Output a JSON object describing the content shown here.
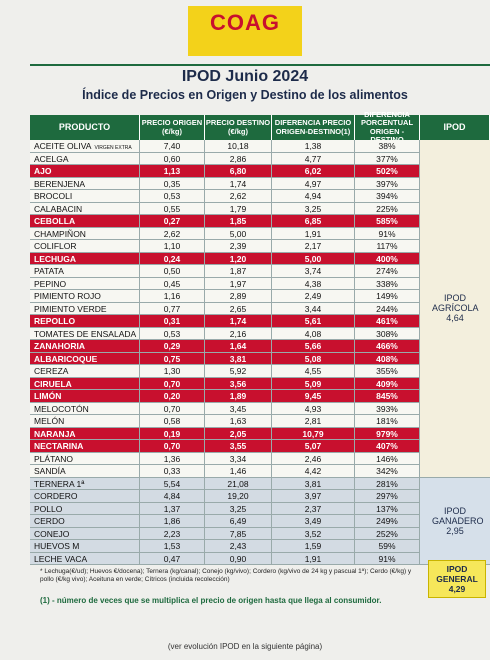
{
  "header": {
    "logo": "COAG",
    "title": "IPOD Junio 2024",
    "subtitle": "Índice de Precios en Origen y Destino de los alimentos"
  },
  "table": {
    "columns": [
      "PRODUCTO",
      "PRECIO ORIGEN (€/kg)",
      "PRECIO DESTINO (€/kg)",
      "DIFERENCIA PRECIO ORIGEN-DESTINO(1)",
      "DIFERENCIA PORCENTUAL ORIGEN - DESTINO",
      "IPOD"
    ],
    "agricola": {
      "label": "IPOD AGRÍCOLA",
      "value": "4,64",
      "rows": [
        {
          "product": "ACEITE OLIVA",
          "note": "VIRGEN EXTRA",
          "origin": "7,40",
          "destination": "10,18",
          "difference": "1,38",
          "percent": "38%"
        },
        {
          "product": "ACELGA",
          "origin": "0,60",
          "destination": "2,86",
          "difference": "4,77",
          "percent": "377%"
        },
        {
          "product": "AJO",
          "origin": "1,13",
          "destination": "6,80",
          "difference": "6,02",
          "percent": "502%",
          "highlight": true
        },
        {
          "product": "BERENJENA",
          "origin": "0,35",
          "destination": "1,74",
          "difference": "4,97",
          "percent": "397%"
        },
        {
          "product": "BROCOLI",
          "origin": "0,53",
          "destination": "2,62",
          "difference": "4,94",
          "percent": "394%"
        },
        {
          "product": "CALABACIN",
          "origin": "0,55",
          "destination": "1,79",
          "difference": "3,25",
          "percent": "225%"
        },
        {
          "product": "CEBOLLA",
          "origin": "0,27",
          "destination": "1,85",
          "difference": "6,85",
          "percent": "585%",
          "highlight": true
        },
        {
          "product": "CHAMPIÑON",
          "origin": "2,62",
          "destination": "5,00",
          "difference": "1,91",
          "percent": "91%"
        },
        {
          "product": "COLIFLOR",
          "origin": "1,10",
          "destination": "2,39",
          "difference": "2,17",
          "percent": "117%"
        },
        {
          "product": "LECHUGA",
          "origin": "0,24",
          "destination": "1,20",
          "difference": "5,00",
          "percent": "400%",
          "highlight": true
        },
        {
          "product": "PATATA",
          "origin": "0,50",
          "destination": "1,87",
          "difference": "3,74",
          "percent": "274%"
        },
        {
          "product": "PEPINO",
          "origin": "0,45",
          "destination": "1,97",
          "difference": "4,38",
          "percent": "338%"
        },
        {
          "product": "PIMIENTO ROJO",
          "origin": "1,16",
          "destination": "2,89",
          "difference": "2,49",
          "percent": "149%"
        },
        {
          "product": "PIMIENTO VERDE",
          "origin": "0,77",
          "destination": "2,65",
          "difference": "3,44",
          "percent": "244%"
        },
        {
          "product": "REPOLLO",
          "origin": "0,31",
          "destination": "1,74",
          "difference": "5,61",
          "percent": "461%",
          "highlight": true
        },
        {
          "product": "TOMATES DE ENSALADA",
          "origin": "0,53",
          "destination": "2,16",
          "difference": "4,08",
          "percent": "308%"
        },
        {
          "product": "ZANAHORIA",
          "origin": "0,29",
          "destination": "1,64",
          "difference": "5,66",
          "percent": "466%",
          "highlight": true
        },
        {
          "product": "ALBARICOQUE",
          "origin": "0,75",
          "destination": "3,81",
          "difference": "5,08",
          "percent": "408%",
          "highlight": true
        },
        {
          "product": "CEREZA",
          "origin": "1,30",
          "destination": "5,92",
          "difference": "4,55",
          "percent": "355%"
        },
        {
          "product": "CIRUELA",
          "origin": "0,70",
          "destination": "3,56",
          "difference": "5,09",
          "percent": "409%",
          "highlight": true
        },
        {
          "product": "LIMÓN",
          "origin": "0,20",
          "destination": "1,89",
          "difference": "9,45",
          "percent": "845%",
          "highlight": true
        },
        {
          "product": "MELOCOTÓN",
          "origin": "0,70",
          "destination": "3,45",
          "difference": "4,93",
          "percent": "393%"
        },
        {
          "product": "MELÓN",
          "origin": "0,58",
          "destination": "1,63",
          "difference": "2,81",
          "percent": "181%"
        },
        {
          "product": "NARANJA",
          "origin": "0,19",
          "destination": "2,05",
          "difference": "10,79",
          "percent": "979%",
          "highlight": true
        },
        {
          "product": "NECTARINA",
          "origin": "0,70",
          "destination": "3,55",
          "difference": "5,07",
          "percent": "407%",
          "highlight": true
        },
        {
          "product": "PLÁTANO",
          "origin": "1,36",
          "destination": "3,34",
          "difference": "2,46",
          "percent": "146%"
        },
        {
          "product": "SANDÍA",
          "origin": "0,33",
          "destination": "1,46",
          "difference": "4,42",
          "percent": "342%"
        }
      ]
    },
    "ganadero": {
      "label": "IPOD GANADERO",
      "value": "2,95",
      "rows": [
        {
          "product": "TERNERA 1ª",
          "origin": "5,54",
          "destination": "21,08",
          "difference": "3,81",
          "percent": "281%"
        },
        {
          "product": "CORDERO",
          "origin": "4,84",
          "destination": "19,20",
          "difference": "3,97",
          "percent": "297%"
        },
        {
          "product": "POLLO",
          "origin": "1,37",
          "destination": "3,25",
          "difference": "2,37",
          "percent": "137%"
        },
        {
          "product": "CERDO",
          "origin": "1,86",
          "destination": "6,49",
          "difference": "3,49",
          "percent": "249%"
        },
        {
          "product": "CONEJO",
          "origin": "2,23",
          "destination": "7,85",
          "difference": "3,52",
          "percent": "252%"
        },
        {
          "product": "HUEVOS M",
          "origin": "1,53",
          "destination": "2,43",
          "difference": "1,59",
          "percent": "59%"
        },
        {
          "product": "LECHE VACA",
          "origin": "0,47",
          "destination": "0,90",
          "difference": "1,91",
          "percent": "91%"
        }
      ]
    },
    "general": {
      "label": "IPOD GENERAL",
      "value": "4,29"
    }
  },
  "footer": {
    "units_note": "* Lechuga(€/ud); Huevos €/docena); Ternera (kg/canal); Conejo (kg/vivo); Cordero (kg/vivo de 24 kg y pascual 1ª); Cerdo (€/kg) y pollo (€/kg vivo); Aceituna en verde; Cítricos (incluida recolección)",
    "definition": "(1) - número de veces que se multiplica el precio de origen hasta que llega al consumidor.",
    "next_page": "(ver evolución IPOD en la siguiente página)"
  }
}
